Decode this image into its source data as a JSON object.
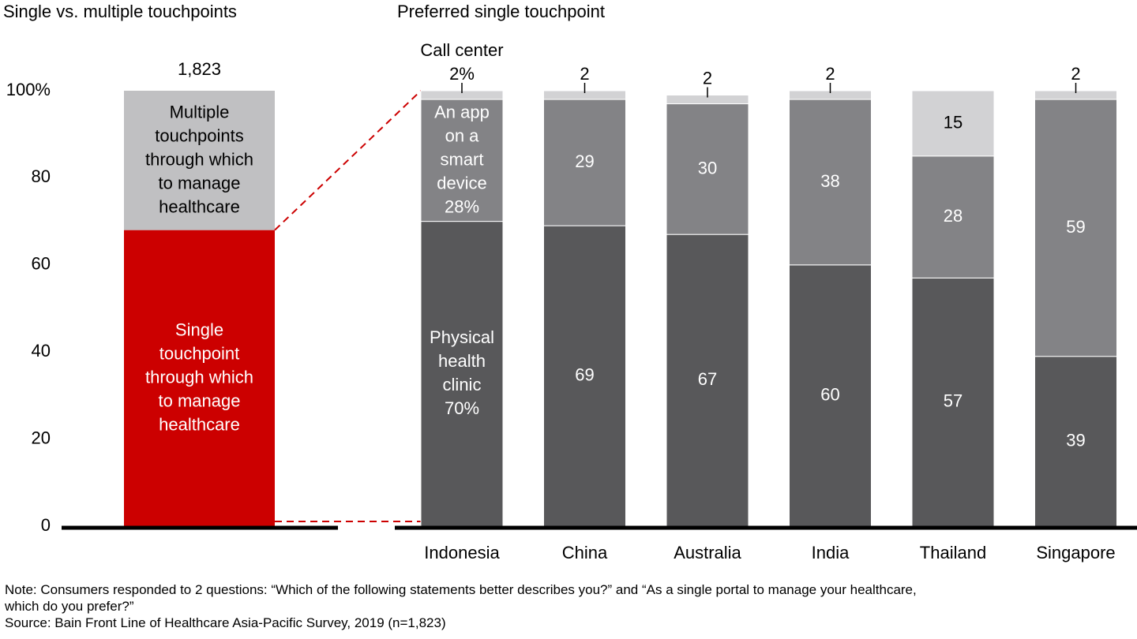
{
  "chart_data": [
    {
      "type": "bar",
      "title": "Single vs. multiple touchpoints",
      "ylabel": "",
      "ylim": [
        0,
        100
      ],
      "yticks": [
        "0",
        "20",
        "40",
        "60",
        "80",
        "100%"
      ],
      "total_label": "1,823",
      "series": [
        {
          "name": "Single touchpoint through which to manage healthcare",
          "lines": [
            "Single",
            "touchpoint",
            "through which",
            "to manage",
            "healthcare"
          ],
          "value": 68,
          "color": "#cc0000",
          "text_color": "#ffffff"
        },
        {
          "name": "Multiple touchpoints through which to manage healthcare",
          "lines": [
            "Multiple",
            "touchpoints",
            "through which",
            "to manage",
            "healthcare"
          ],
          "value": 32,
          "color": "#c0c0c2",
          "text_color": "#000000"
        }
      ]
    },
    {
      "type": "bar",
      "title": "Preferred single touchpoint",
      "ylim": [
        0,
        100
      ],
      "categories": [
        "Indonesia",
        "China",
        "Australia",
        "India",
        "Thailand",
        "Singapore"
      ],
      "series": [
        {
          "name": "Physical health clinic",
          "values": [
            70,
            69,
            67,
            60,
            57,
            39
          ],
          "labels": [
            "Physical|health|clinic|70%",
            "69",
            "67",
            "60",
            "57",
            "39"
          ],
          "color": "#58585a",
          "text_color": "#ffffff"
        },
        {
          "name": "An app on a smart device",
          "values": [
            28,
            29,
            30,
            38,
            28,
            59
          ],
          "labels": [
            "An app|on a|smart|device|28%",
            "29",
            "30",
            "38",
            "28",
            "59"
          ],
          "color": "#838386",
          "text_color": "#ffffff"
        },
        {
          "name": "Call center",
          "values": [
            2,
            2,
            2,
            2,
            15,
            2
          ],
          "labels": [
            "Call center|2%",
            "2",
            "2",
            "2",
            "15",
            "2"
          ],
          "color": "#d2d2d4",
          "text_color": "#000000"
        }
      ]
    }
  ],
  "note": {
    "line1": "Note: Consumers responded to 2 questions: “Which of the following statements better describes you?” and “As a single portal to manage your healthcare,",
    "line2": "which do you prefer?”",
    "source": "Source: Bain Front Line of Healthcare Asia-Pacific Survey, 2019 (n=1,823)"
  }
}
